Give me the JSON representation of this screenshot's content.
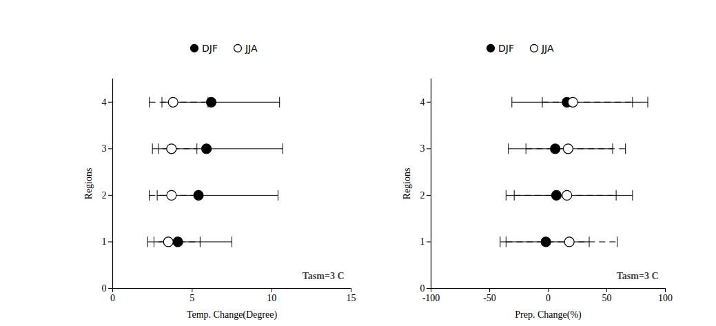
{
  "chart_data": [
    {
      "type": "scatter",
      "orientation": "horizontal",
      "legend": "top",
      "x_label": "Temp. Change(Degree)",
      "y_label": "Regions",
      "annotation": "Tasm=3 C",
      "y": [
        1,
        2,
        3,
        4
      ],
      "xlim": [
        0,
        15
      ],
      "xticks": [
        0,
        5,
        10,
        15
      ],
      "ylim": [
        0,
        4.5
      ],
      "yticks": [
        0,
        1,
        2,
        3,
        4
      ],
      "series": [
        {
          "name": "DJF",
          "color": "#000000",
          "marker": "filled",
          "line_style": "solid",
          "values": [
            4.1,
            5.4,
            5.9,
            6.2
          ],
          "low": [
            2.6,
            2.8,
            2.9,
            3.1
          ],
          "high": [
            7.5,
            10.4,
            10.7,
            10.5
          ]
        },
        {
          "name": "JJA",
          "color": "#000000",
          "marker": "open",
          "line_style": "dashed",
          "values": [
            3.5,
            3.7,
            3.7,
            3.8
          ],
          "low": [
            2.2,
            2.3,
            2.5,
            2.3
          ],
          "high": [
            5.5,
            5.4,
            5.3,
            6.0
          ]
        }
      ]
    },
    {
      "type": "scatter",
      "orientation": "horizontal",
      "legend": "top",
      "x_label": "Prep. Change(%)",
      "y_label": "Regions",
      "annotation": "Tasm=3 C",
      "y": [
        1,
        2,
        3,
        4
      ],
      "xlim": [
        -100,
        100
      ],
      "xticks": [
        -100,
        -50,
        0,
        50,
        100
      ],
      "ylim": [
        0,
        4.5
      ],
      "yticks": [
        0,
        1,
        2,
        3,
        4
      ],
      "series": [
        {
          "name": "DJF",
          "color": "#000000",
          "marker": "filled",
          "line_style": "solid",
          "values": [
            -2,
            7,
            6,
            16
          ],
          "low": [
            -41,
            -36,
            -34,
            -31
          ],
          "high": [
            35,
            72,
            55,
            85
          ]
        },
        {
          "name": "JJA",
          "color": "#000000",
          "marker": "open",
          "line_style": "dashed",
          "values": [
            18,
            16,
            17,
            21
          ],
          "low": [
            -36,
            -29,
            -19,
            -5
          ],
          "high": [
            59,
            58,
            66,
            72
          ]
        }
      ]
    }
  ]
}
